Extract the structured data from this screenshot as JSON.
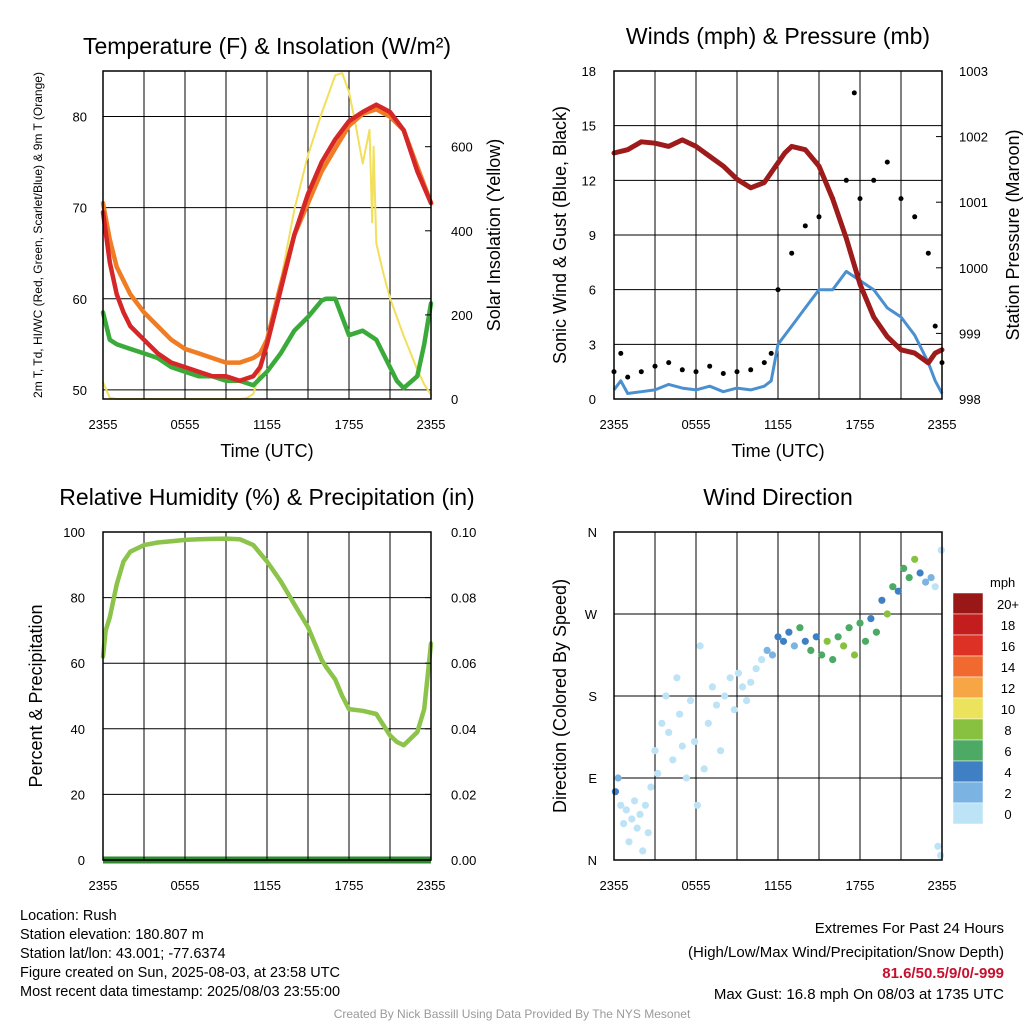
{
  "chart_data": [
    {
      "type": "line",
      "title": "Temperature (F) & Insolation (W/m²)",
      "xlabel": "Time (UTC)",
      "ylabel": "2m T, Td, HI/WC (Red, Green, Scarlet/Blue) & 9m T (Orange)",
      "y2label": "Solar Insolation (Yellow)",
      "x_ticks": [
        "2355",
        "0555",
        "1155",
        "1755",
        "2355"
      ],
      "ylim": [
        49,
        85
      ],
      "y_ticks": [
        50,
        60,
        70,
        80
      ],
      "y2lim": [
        0,
        780
      ],
      "y2_ticks": [
        0,
        200,
        400,
        600
      ],
      "grid": true,
      "series": [
        {
          "name": "2m T",
          "color": "#d62728",
          "axis": "left",
          "x": [
            0,
            0.5,
            1,
            1.5,
            2,
            3,
            4,
            5,
            6,
            7,
            8,
            9,
            10,
            11,
            11.5,
            12,
            13,
            14,
            15,
            16,
            17,
            18,
            19,
            20,
            21,
            22,
            23,
            24
          ],
          "values": [
            69.5,
            64,
            60.5,
            58.5,
            57,
            55.5,
            54,
            53,
            52.5,
            52,
            51.5,
            51.5,
            51,
            51.5,
            52.5,
            55,
            61,
            67,
            71.5,
            75,
            77.5,
            79.5,
            80.5,
            81.3,
            80.5,
            78.5,
            74,
            70.5
          ]
        },
        {
          "name": "9m T",
          "color": "#f07c24",
          "axis": "left",
          "x": [
            0,
            0.5,
            1,
            1.5,
            2,
            3,
            4,
            5,
            6,
            7,
            8,
            9,
            10,
            11,
            11.5,
            12,
            13,
            14,
            15,
            16,
            17,
            18,
            19,
            20,
            21,
            22,
            23,
            24
          ],
          "values": [
            70.5,
            66.5,
            63.5,
            62,
            60.5,
            58.5,
            57,
            55.5,
            54.5,
            54,
            53.5,
            53,
            53,
            53.5,
            54,
            55.5,
            61.5,
            67,
            70.5,
            74,
            76.5,
            79,
            80.3,
            80.8,
            80,
            78.5,
            74.5,
            70.5
          ]
        },
        {
          "name": "2m Td",
          "color": "#3aab3a",
          "axis": "left",
          "x": [
            0,
            0.5,
            1,
            2,
            3,
            4,
            5,
            6,
            7,
            8,
            9,
            10,
            11,
            12,
            13,
            14,
            15,
            16,
            16.3,
            17,
            18,
            19,
            20,
            21,
            21.5,
            22,
            23,
            23.5,
            24
          ],
          "values": [
            58.5,
            55.5,
            55,
            54.5,
            54,
            53.5,
            52.5,
            52,
            51.5,
            51.5,
            51,
            51,
            50.5,
            52,
            54,
            56.5,
            58,
            59.8,
            60,
            60,
            56,
            56.5,
            55.5,
            52.5,
            51,
            50.2,
            51.5,
            55,
            59.5
          ]
        },
        {
          "name": "Solar Insolation",
          "color": "#f2df5b",
          "axis": "right",
          "x": [
            0,
            0.5,
            1,
            2,
            4,
            6,
            8,
            9,
            9.5,
            10,
            10.5,
            11,
            12,
            13,
            14,
            15,
            16,
            17,
            17.5,
            18,
            18.5,
            19,
            19.5,
            19.7,
            19.8,
            20,
            20.5,
            21,
            22,
            23,
            23.5,
            24
          ],
          "values": [
            40,
            3,
            0,
            0,
            0,
            0,
            0,
            0,
            0,
            0,
            2,
            12,
            120,
            280,
            450,
            580,
            680,
            770,
            775,
            730,
            650,
            560,
            640,
            420,
            600,
            370,
            300,
            240,
            150,
            70,
            35,
            10
          ]
        }
      ]
    },
    {
      "type": "line",
      "title": "Winds (mph) & Pressure (mb)",
      "xlabel": "Time (UTC)",
      "ylabel": "Sonic Wind & Gust (Blue, Black)",
      "y2label": "Station Pressure (Maroon)",
      "x_ticks": [
        "2355",
        "0555",
        "1155",
        "1755",
        "2355"
      ],
      "ylim": [
        0,
        18
      ],
      "y_ticks": [
        0,
        3,
        6,
        9,
        12,
        15,
        18
      ],
      "y2lim": [
        998,
        1003
      ],
      "y2_ticks": [
        998,
        999,
        1000,
        1001,
        1002,
        1003
      ],
      "grid": true,
      "series": [
        {
          "name": "Sonic Wind",
          "color": "#4a90d0",
          "axis": "left",
          "x": [
            0,
            0.5,
            1,
            2,
            3,
            4,
            5,
            6,
            7,
            8,
            9,
            10,
            11,
            11.5,
            12,
            13,
            14,
            15,
            16,
            17,
            18,
            19,
            20,
            21,
            21.5,
            22,
            23,
            23.5,
            24
          ],
          "values": [
            0.5,
            1,
            0.3,
            0.4,
            0.5,
            0.8,
            0.6,
            0.5,
            0.7,
            0.4,
            0.6,
            0.5,
            0.7,
            1,
            3,
            4,
            5,
            6,
            6,
            7,
            6.5,
            6,
            5,
            4.5,
            4,
            3.5,
            2,
            1,
            0.3
          ]
        },
        {
          "name": "Gust",
          "color": "#000000",
          "axis": "left",
          "x": [
            0,
            0.5,
            1,
            2,
            3,
            4,
            5,
            6,
            7,
            8,
            9,
            10,
            11,
            11.5,
            12,
            13,
            14,
            15,
            16,
            17,
            17.58,
            18,
            19,
            20,
            21,
            22,
            23,
            23.5,
            24
          ],
          "values": [
            1.5,
            2.5,
            1.2,
            1.5,
            1.8,
            2,
            1.6,
            1.5,
            1.8,
            1.4,
            1.5,
            1.6,
            2,
            2.5,
            6,
            8,
            9.5,
            10,
            11,
            12,
            16.8,
            11,
            12,
            13,
            11,
            10,
            8,
            4,
            2
          ]
        },
        {
          "name": "Station Pressure",
          "color": "#9e1b1b",
          "axis": "right",
          "x": [
            0,
            1,
            2,
            3,
            4,
            5,
            6,
            7,
            8,
            9,
            10,
            11,
            12,
            12.5,
            13,
            14,
            15,
            16,
            17,
            18,
            19,
            20,
            21,
            22,
            23,
            23.5,
            24
          ],
          "values": [
            1001.75,
            1001.8,
            1001.92,
            1001.9,
            1001.85,
            1001.95,
            1001.85,
            1001.7,
            1001.55,
            1001.35,
            1001.22,
            1001.3,
            1001.6,
            1001.75,
            1001.85,
            1001.8,
            1001.55,
            1001.05,
            1000.45,
            999.75,
            999.25,
            998.95,
            998.75,
            998.7,
            998.55,
            998.7,
            998.75
          ]
        }
      ]
    },
    {
      "type": "line",
      "title": "Relative Humidity (%) & Precipitation (in)",
      "xlabel": "",
      "ylabel": "Percent & Precipitation",
      "x_ticks": [
        "2355",
        "0555",
        "1155",
        "1755",
        "2355"
      ],
      "ylim": [
        0,
        100
      ],
      "y_ticks": [
        0,
        20,
        40,
        60,
        80,
        100
      ],
      "y2lim": [
        0,
        0.1
      ],
      "y2_ticks": [
        "0.00",
        "0.02",
        "0.04",
        "0.06",
        "0.08",
        "0.10"
      ],
      "grid": true,
      "series": [
        {
          "name": "Relative Humidity",
          "color": "#8cc34a",
          "axis": "left",
          "x": [
            0,
            0.2,
            0.5,
            1,
            1.5,
            2,
            3,
            4,
            5,
            6,
            7,
            8,
            9,
            10,
            11,
            12,
            13,
            14,
            15,
            16,
            16.3,
            17,
            17.5,
            18,
            19,
            20,
            21,
            21.5,
            22,
            23,
            23.5,
            24
          ],
          "values": [
            62,
            70,
            74,
            84,
            91,
            94,
            96,
            96.8,
            97.2,
            97.6,
            97.8,
            97.9,
            98,
            97.8,
            96,
            91,
            85,
            78,
            71,
            61,
            59,
            55,
            50,
            46,
            45.5,
            44.5,
            38,
            36,
            35,
            39,
            46,
            66
          ]
        },
        {
          "name": "Precipitation",
          "color": "#2d8a2d",
          "axis": "right",
          "x": [
            0,
            24
          ],
          "values": [
            0,
            0
          ]
        }
      ]
    },
    {
      "type": "scatter",
      "title": "Wind Direction",
      "xlabel": "",
      "ylabel": "Direction (Colored By Speed)",
      "x_ticks": [
        "2355",
        "0555",
        "1155",
        "1755",
        "2355"
      ],
      "y_ticks": [
        "N",
        "E",
        "S",
        "W",
        "N"
      ],
      "ylim": [
        0,
        360
      ],
      "legend_title": "mph",
      "legend": [
        "20+",
        "18",
        "16",
        "14",
        "12",
        "10",
        "8",
        "6",
        "4",
        "2",
        "0"
      ],
      "legend_colors": [
        "#9a1717",
        "#c31d1d",
        "#de3126",
        "#f06a2f",
        "#f6a644",
        "#ece35c",
        "#88c040",
        "#4caa64",
        "#3f80c4",
        "#7bb4e2",
        "#bde3f6"
      ],
      "points": [
        {
          "x": 0.1,
          "y": 75,
          "c": 2
        },
        {
          "x": 0.3,
          "y": 90,
          "c": 1
        },
        {
          "x": 0.5,
          "y": 60,
          "c": 0
        },
        {
          "x": 0.7,
          "y": 40,
          "c": 0
        },
        {
          "x": 0.9,
          "y": 55,
          "c": 0
        },
        {
          "x": 1.1,
          "y": 20,
          "c": 0
        },
        {
          "x": 1.3,
          "y": 45,
          "c": 0
        },
        {
          "x": 1.5,
          "y": 65,
          "c": 0
        },
        {
          "x": 1.7,
          "y": 35,
          "c": 0
        },
        {
          "x": 1.9,
          "y": 50,
          "c": 0
        },
        {
          "x": 2.1,
          "y": 10,
          "c": 0
        },
        {
          "x": 2.3,
          "y": 60,
          "c": 0
        },
        {
          "x": 2.5,
          "y": 30,
          "c": 0
        },
        {
          "x": 2.7,
          "y": 80,
          "c": 0
        },
        {
          "x": 3.0,
          "y": 120,
          "c": 0
        },
        {
          "x": 3.2,
          "y": 95,
          "c": 0
        },
        {
          "x": 3.5,
          "y": 150,
          "c": 0
        },
        {
          "x": 3.8,
          "y": 180,
          "c": 0
        },
        {
          "x": 4.0,
          "y": 140,
          "c": 0
        },
        {
          "x": 4.3,
          "y": 110,
          "c": 0
        },
        {
          "x": 4.6,
          "y": 200,
          "c": 0
        },
        {
          "x": 4.8,
          "y": 160,
          "c": 0
        },
        {
          "x": 5.0,
          "y": 125,
          "c": 0
        },
        {
          "x": 5.3,
          "y": 90,
          "c": 0
        },
        {
          "x": 5.6,
          "y": 175,
          "c": 0
        },
        {
          "x": 5.9,
          "y": 130,
          "c": 0
        },
        {
          "x": 6.1,
          "y": 60,
          "c": 0
        },
        {
          "x": 6.3,
          "y": 235,
          "c": 0
        },
        {
          "x": 6.6,
          "y": 100,
          "c": 0
        },
        {
          "x": 6.9,
          "y": 150,
          "c": 0
        },
        {
          "x": 7.2,
          "y": 190,
          "c": 0
        },
        {
          "x": 7.5,
          "y": 170,
          "c": 0
        },
        {
          "x": 7.8,
          "y": 120,
          "c": 0
        },
        {
          "x": 8.1,
          "y": 180,
          "c": 0
        },
        {
          "x": 8.5,
          "y": 200,
          "c": 0
        },
        {
          "x": 8.8,
          "y": 165,
          "c": 0
        },
        {
          "x": 9.1,
          "y": 205,
          "c": 0
        },
        {
          "x": 9.4,
          "y": 190,
          "c": 0
        },
        {
          "x": 9.7,
          "y": 175,
          "c": 0
        },
        {
          "x": 10.0,
          "y": 195,
          "c": 0
        },
        {
          "x": 10.4,
          "y": 210,
          "c": 0
        },
        {
          "x": 10.8,
          "y": 220,
          "c": 0
        },
        {
          "x": 11.2,
          "y": 230,
          "c": 1
        },
        {
          "x": 11.6,
          "y": 225,
          "c": 1
        },
        {
          "x": 12.0,
          "y": 245,
          "c": 2
        },
        {
          "x": 12.4,
          "y": 240,
          "c": 2
        },
        {
          "x": 12.8,
          "y": 250,
          "c": 2
        },
        {
          "x": 13.2,
          "y": 235,
          "c": 1
        },
        {
          "x": 13.6,
          "y": 255,
          "c": 3
        },
        {
          "x": 14.0,
          "y": 240,
          "c": 2
        },
        {
          "x": 14.4,
          "y": 230,
          "c": 3
        },
        {
          "x": 14.8,
          "y": 245,
          "c": 2
        },
        {
          "x": 15.2,
          "y": 225,
          "c": 3
        },
        {
          "x": 15.6,
          "y": 240,
          "c": 4
        },
        {
          "x": 16.0,
          "y": 220,
          "c": 3
        },
        {
          "x": 16.4,
          "y": 245,
          "c": 3
        },
        {
          "x": 16.8,
          "y": 235,
          "c": 4
        },
        {
          "x": 17.2,
          "y": 255,
          "c": 3
        },
        {
          "x": 17.6,
          "y": 225,
          "c": 4
        },
        {
          "x": 18.0,
          "y": 260,
          "c": 3
        },
        {
          "x": 18.4,
          "y": 240,
          "c": 3
        },
        {
          "x": 18.8,
          "y": 265,
          "c": 2
        },
        {
          "x": 19.2,
          "y": 250,
          "c": 3
        },
        {
          "x": 19.6,
          "y": 285,
          "c": 2
        },
        {
          "x": 20.0,
          "y": 270,
          "c": 4
        },
        {
          "x": 20.4,
          "y": 300,
          "c": 3
        },
        {
          "x": 20.8,
          "y": 295,
          "c": 2
        },
        {
          "x": 21.2,
          "y": 320,
          "c": 3
        },
        {
          "x": 21.6,
          "y": 310,
          "c": 3
        },
        {
          "x": 22.0,
          "y": 330,
          "c": 4
        },
        {
          "x": 22.4,
          "y": 315,
          "c": 2
        },
        {
          "x": 22.8,
          "y": 305,
          "c": 1
        },
        {
          "x": 23.2,
          "y": 310,
          "c": 1
        },
        {
          "x": 23.5,
          "y": 300,
          "c": 0
        },
        {
          "x": 23.7,
          "y": 15,
          "c": 0
        },
        {
          "x": 23.9,
          "y": 5,
          "c": 0
        },
        {
          "x": 23.95,
          "y": 340,
          "c": 0
        }
      ]
    }
  ],
  "info": {
    "location": "Location: Rush",
    "elevation": "Station elevation: 180.807 m",
    "latlon": "Station lat/lon: 43.001; -77.6374",
    "created": "Figure created on Sun, 2025-08-03, at 23:58 UTC",
    "latest": "Most recent data timestamp: 2025/08/03 23:55:00"
  },
  "extremes": {
    "line1": "Extremes For Past 24 Hours",
    "line2": "(High/Low/Max Wind/Precipitation/Snow Depth)",
    "values": "81.6/50.5/9/0/-999",
    "gust": "Max Gust: 16.8 mph On 08/03 at 1735 UTC"
  },
  "credit": "Created By Nick Bassill Using Data Provided By The NYS Mesonet"
}
